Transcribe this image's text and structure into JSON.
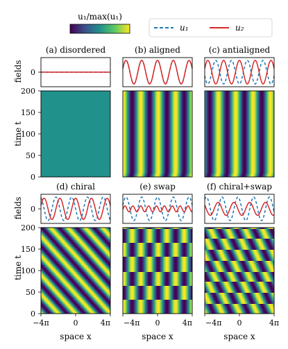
{
  "colors": {
    "u1": "#1f77b4",
    "u2": "#d62728",
    "disordered_fill": "#21918c",
    "viridis_stops": [
      "#440154",
      "#3b528b",
      "#21918c",
      "#5ec962",
      "#fde725"
    ]
  },
  "colorbar": {
    "label": "u₁/max(u₁)",
    "range": [
      -1,
      1
    ]
  },
  "legend": {
    "u1_label": "u₁",
    "u2_label": "u₂"
  },
  "chart_data": [
    {
      "type": "line",
      "panel": "a",
      "title": "(a) disordered",
      "ylabel": "fields",
      "yticks": [
        "0"
      ],
      "x_range": [
        "-4π",
        "4π"
      ],
      "series": [
        {
          "name": "u₁",
          "function": "zero",
          "amplitude": 0
        },
        {
          "name": "u₂",
          "function": "zero",
          "amplitude": 0
        }
      ]
    },
    {
      "type": "line",
      "panel": "b",
      "title": "(b) aligned",
      "series": [
        {
          "name": "u₁",
          "amplitude": 1.0,
          "wavenumber": 0.5,
          "phase": 0
        },
        {
          "name": "u₂",
          "amplitude": 1.0,
          "wavenumber": 0.5,
          "phase": 0
        }
      ]
    },
    {
      "type": "line",
      "panel": "c",
      "title": "(c) antialigned",
      "series": [
        {
          "name": "u₁",
          "amplitude": 1.0,
          "wavenumber": 0.5,
          "phase": 3.1416
        },
        {
          "name": "u₂",
          "amplitude": 1.0,
          "wavenumber": 0.5,
          "phase": 0
        }
      ]
    },
    {
      "type": "line",
      "panel": "d",
      "title": "(d) chiral",
      "ylabel": "fields",
      "yticks": [
        "0"
      ],
      "series": [
        {
          "name": "u₁",
          "amplitude": 1.0,
          "wavenumber": 0.5,
          "phase": 1.5708
        },
        {
          "name": "u₂",
          "amplitude": 0.9,
          "wavenumber": 0.5,
          "phase": 0
        }
      ]
    },
    {
      "type": "line",
      "panel": "e",
      "title": "(e) swap",
      "series": [
        {
          "name": "u₁",
          "amplitude": 1.0,
          "wavenumber": 0.5,
          "phase": 0
        },
        {
          "name": "u₂",
          "amplitude": 0.25,
          "wavenumber": 1.0,
          "phase": 0.8
        }
      ]
    },
    {
      "type": "line",
      "panel": "f",
      "title": "(f) chiral+swap",
      "series": [
        {
          "name": "u₁",
          "amplitude": 1.0,
          "wavenumber": 0.5,
          "phase": 0.6
        },
        {
          "name": "u₂",
          "amplitude": 0.55,
          "wavenumber": 0.5,
          "phase": 2.2
        }
      ]
    },
    {
      "type": "heatmap",
      "panel": "a",
      "pattern": "uniform",
      "ylabel": "time t",
      "yticks": [
        "0",
        "50",
        "100",
        "150",
        "200"
      ],
      "ylim": [
        0,
        200
      ]
    },
    {
      "type": "heatmap",
      "panel": "b",
      "pattern": "stationary stripes",
      "wavenumber": 0.5,
      "ylim": [
        0,
        200
      ]
    },
    {
      "type": "heatmap",
      "panel": "c",
      "pattern": "stationary stripes",
      "wavenumber": 0.5,
      "ylim": [
        0,
        200
      ]
    },
    {
      "type": "heatmap",
      "panel": "d",
      "pattern": "traveling wave",
      "ylabel": "time t",
      "yticks": [
        "0",
        "50",
        "100",
        "150",
        "200"
      ],
      "xlabel": "space x",
      "xticks": [
        "−4π",
        "0",
        "4π"
      ],
      "ylim": [
        0,
        200
      ]
    },
    {
      "type": "heatmap",
      "panel": "e",
      "pattern": "swapping stripes",
      "xlabel": "space x",
      "xticks": [
        "−4π",
        "0",
        "4π"
      ],
      "ylim": [
        0,
        200
      ]
    },
    {
      "type": "heatmap",
      "panel": "f",
      "pattern": "chiral swapping",
      "xlabel": "space x",
      "xticks": [
        "−4π",
        "0",
        "4π"
      ],
      "ylim": [
        0,
        200
      ]
    }
  ]
}
